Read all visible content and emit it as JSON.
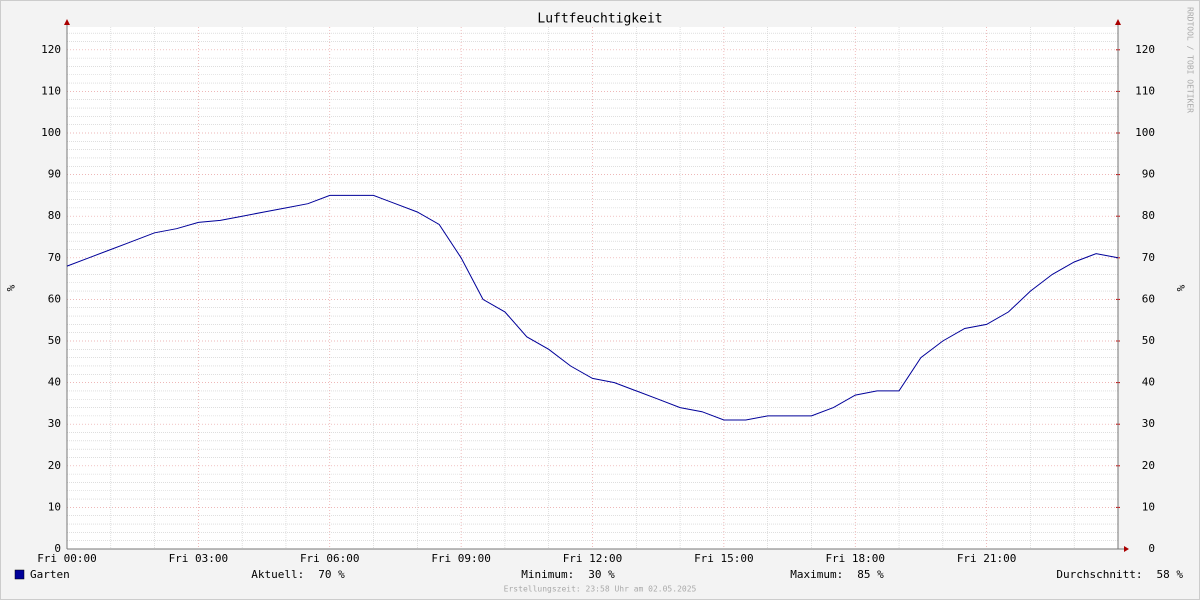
{
  "chart_data": {
    "type": "line",
    "title": "Luftfeuchtigkeit",
    "y_label": "%",
    "watermark": "RRDTOOL / TOBI OETIKER",
    "footer": "Erstellungszeit: 23:58 Uhr am 02.05.2025",
    "x": [
      0,
      0.5,
      1,
      1.5,
      2,
      2.5,
      3,
      3.5,
      4,
      4.5,
      5,
      5.5,
      6,
      6.5,
      7,
      7.5,
      8,
      8.5,
      9,
      9.5,
      10,
      10.5,
      11,
      11.5,
      12,
      12.5,
      13,
      13.5,
      14,
      14.5,
      15,
      15.5,
      16,
      16.5,
      17,
      17.5,
      18,
      18.5,
      19,
      19.5,
      20,
      20.5,
      21,
      21.5,
      22,
      22.5,
      23,
      23.5,
      24
    ],
    "series": [
      {
        "name": "Garten",
        "color": "#000099",
        "values": [
          68,
          70,
          72,
          74,
          76,
          77,
          78.5,
          79,
          80,
          81,
          82,
          83,
          85,
          85,
          85,
          83,
          81,
          78,
          70,
          60,
          57,
          51,
          48,
          44,
          41,
          40,
          38,
          36,
          34,
          33,
          31,
          31,
          32,
          32,
          32,
          34,
          37,
          38,
          38,
          46,
          50,
          53,
          54,
          57,
          62,
          66,
          69,
          71,
          70
        ]
      }
    ],
    "xlim": [
      0,
      24
    ],
    "xticks": [
      {
        "value": 0,
        "label": "Fri 00:00"
      },
      {
        "value": 3,
        "label": "Fri 03:00"
      },
      {
        "value": 6,
        "label": "Fri 06:00"
      },
      {
        "value": 9,
        "label": "Fri 09:00"
      },
      {
        "value": 12,
        "label": "Fri 12:00"
      },
      {
        "value": 15,
        "label": "Fri 15:00"
      },
      {
        "value": 18,
        "label": "Fri 18:00"
      },
      {
        "value": 21,
        "label": "Fri 21:00"
      }
    ],
    "xminorticks": [
      1,
      2,
      4,
      5,
      7,
      8,
      10,
      11,
      13,
      14,
      16,
      17,
      19,
      20,
      22,
      23
    ],
    "ylim": [
      0,
      125
    ],
    "yticks": [
      0,
      10,
      20,
      30,
      40,
      50,
      60,
      70,
      80,
      90,
      100,
      110,
      120
    ],
    "yminorticks": [
      2,
      4,
      6,
      8,
      12,
      14,
      16,
      18,
      22,
      24,
      26,
      28,
      32,
      34,
      36,
      38,
      42,
      44,
      46,
      48,
      52,
      54,
      56,
      58,
      62,
      64,
      66,
      68,
      72,
      74,
      76,
      78,
      82,
      84,
      86,
      88,
      92,
      94,
      96,
      98,
      102,
      104,
      106,
      108,
      112,
      114,
      116,
      118,
      122,
      124
    ],
    "y2lim": [
      0,
      125
    ],
    "y2ticks": [
      0,
      10,
      20,
      30,
      40,
      50,
      60,
      70,
      80,
      90,
      100,
      110,
      120
    ],
    "grid": true,
    "summary": {
      "labels": [
        "Aktuell:",
        "Minimum:",
        "Maximum:",
        "Durchschnitt:"
      ],
      "values": [
        70,
        30,
        85,
        58
      ],
      "value_labels": [
        "70 %",
        "30 %",
        "85 %",
        "58 %"
      ]
    }
  }
}
